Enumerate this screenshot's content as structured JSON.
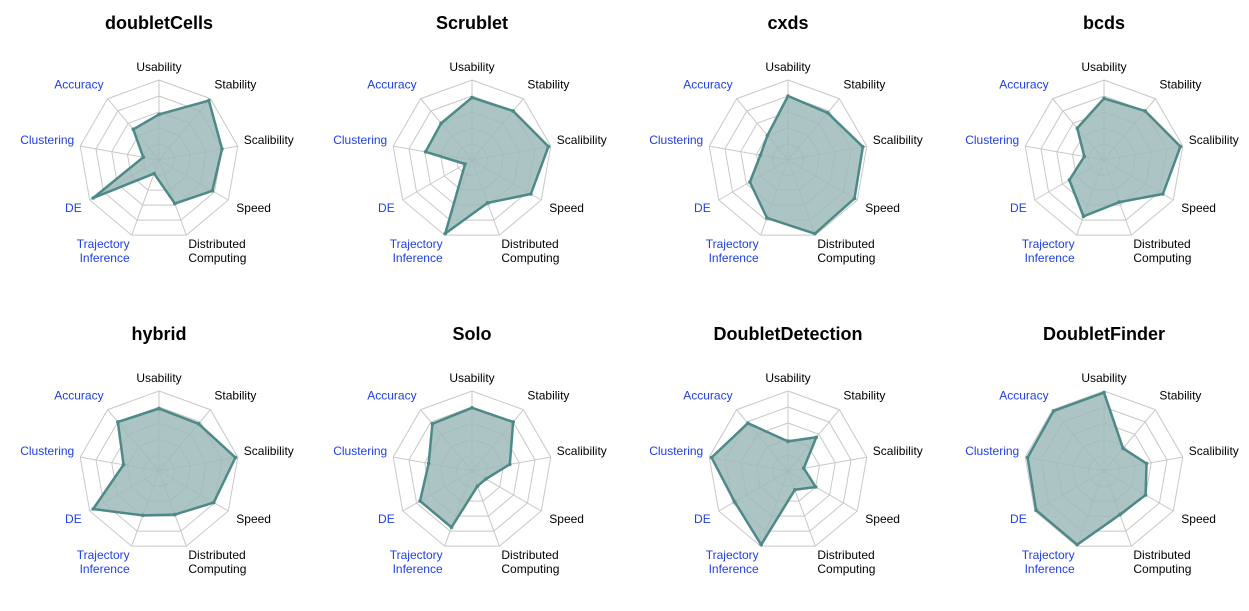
{
  "chart_data": {
    "type": "radar",
    "axes": [
      {
        "name": "Usability",
        "lines": [
          "Usability"
        ],
        "color": "#000000"
      },
      {
        "name": "Stability",
        "lines": [
          "Stability"
        ],
        "color": "#000000"
      },
      {
        "name": "Scalibility",
        "lines": [
          "Scalibility"
        ],
        "color": "#000000"
      },
      {
        "name": "Speed",
        "lines": [
          "Speed"
        ],
        "color": "#000000"
      },
      {
        "name": "Distributed Computing",
        "lines": [
          "Distributed",
          "Computing"
        ],
        "color": "#000000"
      },
      {
        "name": "Trajectory Inference",
        "lines": [
          "Trajectory",
          "Inference"
        ],
        "color": "#1f3fe0"
      },
      {
        "name": "DE",
        "lines": [
          "DE"
        ],
        "color": "#1f3fe0"
      },
      {
        "name": "Clustering",
        "lines": [
          "Clustering"
        ],
        "color": "#1f3fe0"
      },
      {
        "name": "Accuracy",
        "lines": [
          "Accuracy"
        ],
        "color": "#1f3fe0"
      }
    ],
    "range": [
      0,
      1
    ],
    "rings": 5,
    "colors": {
      "fill": "#9dbaba",
      "stroke": "#4d8a87",
      "grid": "#c8c8c8",
      "text": "#000000",
      "highlight_axis_text": "#1f3fe0"
    },
    "methods": [
      {
        "name": "doubletCells",
        "values": [
          0.57,
          0.97,
          0.8,
          0.77,
          0.58,
          0.18,
          0.95,
          0.2,
          0.5
        ]
      },
      {
        "name": "Scrublet",
        "values": [
          0.78,
          0.8,
          0.97,
          0.85,
          0.57,
          0.98,
          0.1,
          0.59,
          0.6
        ]
      },
      {
        "name": "cxds",
        "values": [
          0.8,
          0.77,
          0.95,
          0.96,
          0.98,
          0.77,
          0.55,
          0.35,
          0.4
        ]
      },
      {
        "name": "bcds",
        "values": [
          0.77,
          0.8,
          0.97,
          0.85,
          0.56,
          0.75,
          0.5,
          0.25,
          0.52
        ]
      },
      {
        "name": "hybrid",
        "values": [
          0.78,
          0.77,
          0.97,
          0.79,
          0.58,
          0.59,
          0.95,
          0.45,
          0.8
        ]
      },
      {
        "name": "Solo",
        "values": [
          0.79,
          0.8,
          0.48,
          0.2,
          0.2,
          0.75,
          0.75,
          0.55,
          0.77
        ]
      },
      {
        "name": "DoubletDetection",
        "values": [
          0.37,
          0.55,
          0.2,
          0.4,
          0.25,
          0.98,
          0.77,
          0.97,
          0.78
        ]
      },
      {
        "name": "DoubletFinder",
        "values": [
          0.98,
          0.37,
          0.54,
          0.6,
          0.58,
          0.98,
          0.98,
          0.97,
          0.98
        ]
      }
    ]
  }
}
